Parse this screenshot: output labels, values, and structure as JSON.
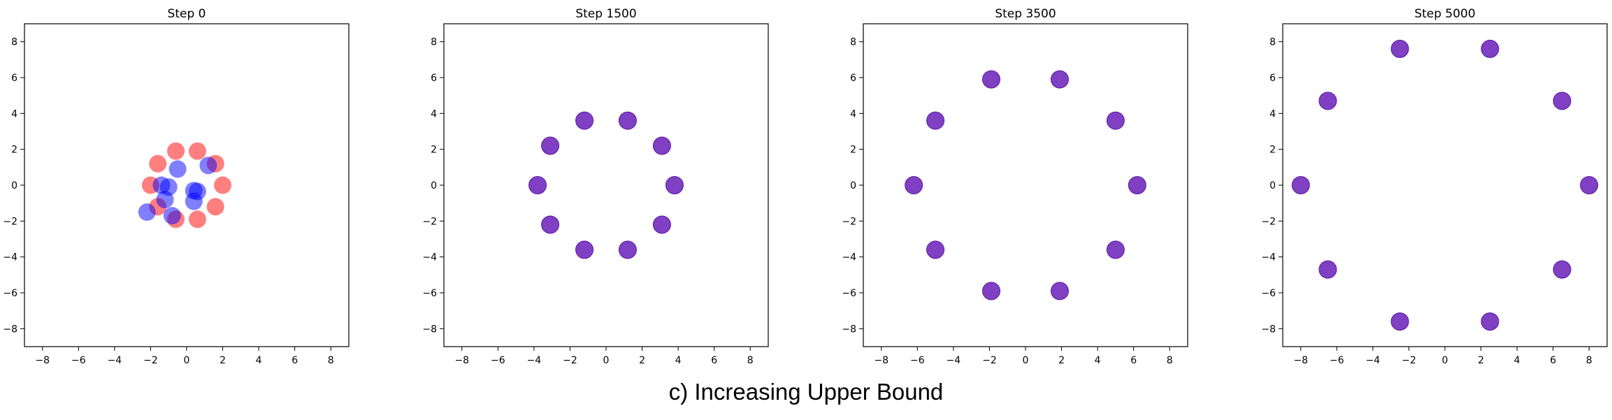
{
  "figure": {
    "caption": "c) Increasing Upper Bound"
  },
  "colors": {
    "red": "#ff0000",
    "blue": "#0000ff",
    "purple": "#6a1fb8",
    "purple_edge": "#5b1aa0",
    "axis": "#000000",
    "tick_label": "#000000"
  },
  "chart_data": [
    {
      "type": "scatter",
      "title": "Step 0",
      "xlabel": "",
      "ylabel": "",
      "xlim": [
        -9,
        9
      ],
      "ylim": [
        -9,
        9
      ],
      "xticks": [
        -8,
        -6,
        -4,
        -2,
        0,
        2,
        4,
        6,
        8
      ],
      "yticks": [
        -8,
        -6,
        -4,
        -2,
        0,
        2,
        4,
        6,
        8
      ],
      "grid": false,
      "series": [
        {
          "color": "red",
          "alpha": 0.5,
          "points": [
            [
              2.0,
              0.0
            ],
            [
              1.6,
              1.2
            ],
            [
              0.6,
              1.9
            ],
            [
              -0.6,
              1.9
            ],
            [
              -1.6,
              1.2
            ],
            [
              -2.0,
              0.0
            ],
            [
              -1.6,
              -1.2
            ],
            [
              -0.6,
              -1.9
            ],
            [
              0.6,
              -1.9
            ],
            [
              1.6,
              -1.2
            ]
          ]
        },
        {
          "color": "blue",
          "alpha": 0.5,
          "points": [
            [
              -0.5,
              0.9
            ],
            [
              1.2,
              1.1
            ],
            [
              -1.4,
              0.0
            ],
            [
              -1.0,
              -0.1
            ],
            [
              0.4,
              -0.3
            ],
            [
              0.6,
              -0.35
            ],
            [
              -1.2,
              -0.8
            ],
            [
              0.4,
              -0.9
            ],
            [
              -0.8,
              -1.7
            ],
            [
              -2.2,
              -1.5
            ]
          ]
        }
      ]
    },
    {
      "type": "scatter",
      "title": "Step 1500",
      "xlabel": "",
      "ylabel": "",
      "xlim": [
        -9,
        9
      ],
      "ylim": [
        -9,
        9
      ],
      "xticks": [
        -8,
        -6,
        -4,
        -2,
        0,
        2,
        4,
        6,
        8
      ],
      "yticks": [
        -8,
        -6,
        -4,
        -2,
        0,
        2,
        4,
        6,
        8
      ],
      "grid": false,
      "series": [
        {
          "color": "purple",
          "alpha": 0.85,
          "points": [
            [
              3.8,
              0.0
            ],
            [
              3.1,
              2.2
            ],
            [
              1.2,
              3.6
            ],
            [
              -1.2,
              3.6
            ],
            [
              -3.1,
              2.2
            ],
            [
              -3.8,
              0.0
            ],
            [
              -3.1,
              -2.2
            ],
            [
              -1.2,
              -3.6
            ],
            [
              1.2,
              -3.6
            ],
            [
              3.1,
              -2.2
            ]
          ]
        }
      ]
    },
    {
      "type": "scatter",
      "title": "Step 3500",
      "xlabel": "",
      "ylabel": "",
      "xlim": [
        -9,
        9
      ],
      "ylim": [
        -9,
        9
      ],
      "xticks": [
        -8,
        -6,
        -4,
        -2,
        0,
        2,
        4,
        6,
        8
      ],
      "yticks": [
        -8,
        -6,
        -4,
        -2,
        0,
        2,
        4,
        6,
        8
      ],
      "grid": false,
      "series": [
        {
          "color": "purple",
          "alpha": 0.85,
          "points": [
            [
              6.2,
              0.0
            ],
            [
              5.0,
              3.6
            ],
            [
              1.9,
              5.9
            ],
            [
              -1.9,
              5.9
            ],
            [
              -5.0,
              3.6
            ],
            [
              -6.2,
              0.0
            ],
            [
              -5.0,
              -3.6
            ],
            [
              -1.9,
              -5.9
            ],
            [
              1.9,
              -5.9
            ],
            [
              5.0,
              -3.6
            ]
          ]
        }
      ]
    },
    {
      "type": "scatter",
      "title": "Step 5000",
      "xlabel": "",
      "ylabel": "",
      "xlim": [
        -9,
        9
      ],
      "ylim": [
        -9,
        9
      ],
      "xticks": [
        -8,
        -6,
        -4,
        -2,
        0,
        2,
        4,
        6,
        8
      ],
      "yticks": [
        -8,
        -6,
        -4,
        -2,
        0,
        2,
        4,
        6,
        8
      ],
      "grid": false,
      "series": [
        {
          "color": "purple",
          "alpha": 0.85,
          "points": [
            [
              8.0,
              0.0
            ],
            [
              6.5,
              4.7
            ],
            [
              2.5,
              7.6
            ],
            [
              -2.5,
              7.6
            ],
            [
              -6.5,
              4.7
            ],
            [
              -8.0,
              0.0
            ],
            [
              -6.5,
              -4.7
            ],
            [
              -2.5,
              -7.6
            ],
            [
              2.5,
              -7.6
            ],
            [
              6.5,
              -4.7
            ]
          ]
        }
      ]
    }
  ]
}
